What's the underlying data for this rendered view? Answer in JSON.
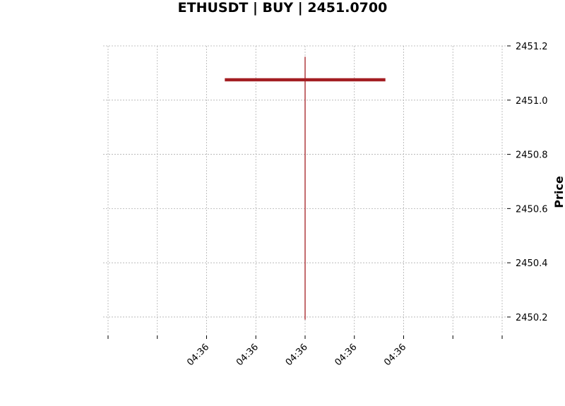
{
  "chart_data": {
    "type": "candlestick",
    "title": "ETHUSDT | BUY | 2451.0700",
    "ylabel": "Price",
    "ylim": [
      2450.14,
      2451.2
    ],
    "y_ticks": [
      2450.2,
      2450.4,
      2450.6,
      2450.8,
      2451.0,
      2451.2
    ],
    "y_tick_labels": [
      "2450.2",
      "2450.4",
      "2450.6",
      "2450.8",
      "2451.0",
      "2451.2"
    ],
    "x_ticks_count": 9,
    "x_tick_labels": [
      "",
      "",
      "04:36",
      "04:36",
      "04:36",
      "04:36",
      "04:36",
      "",
      ""
    ],
    "grid": true,
    "candle": {
      "x_index": 4,
      "open": 2451.07,
      "high": 2451.16,
      "low": 2450.19,
      "close": 2451.08,
      "color": "#a31d22"
    }
  }
}
